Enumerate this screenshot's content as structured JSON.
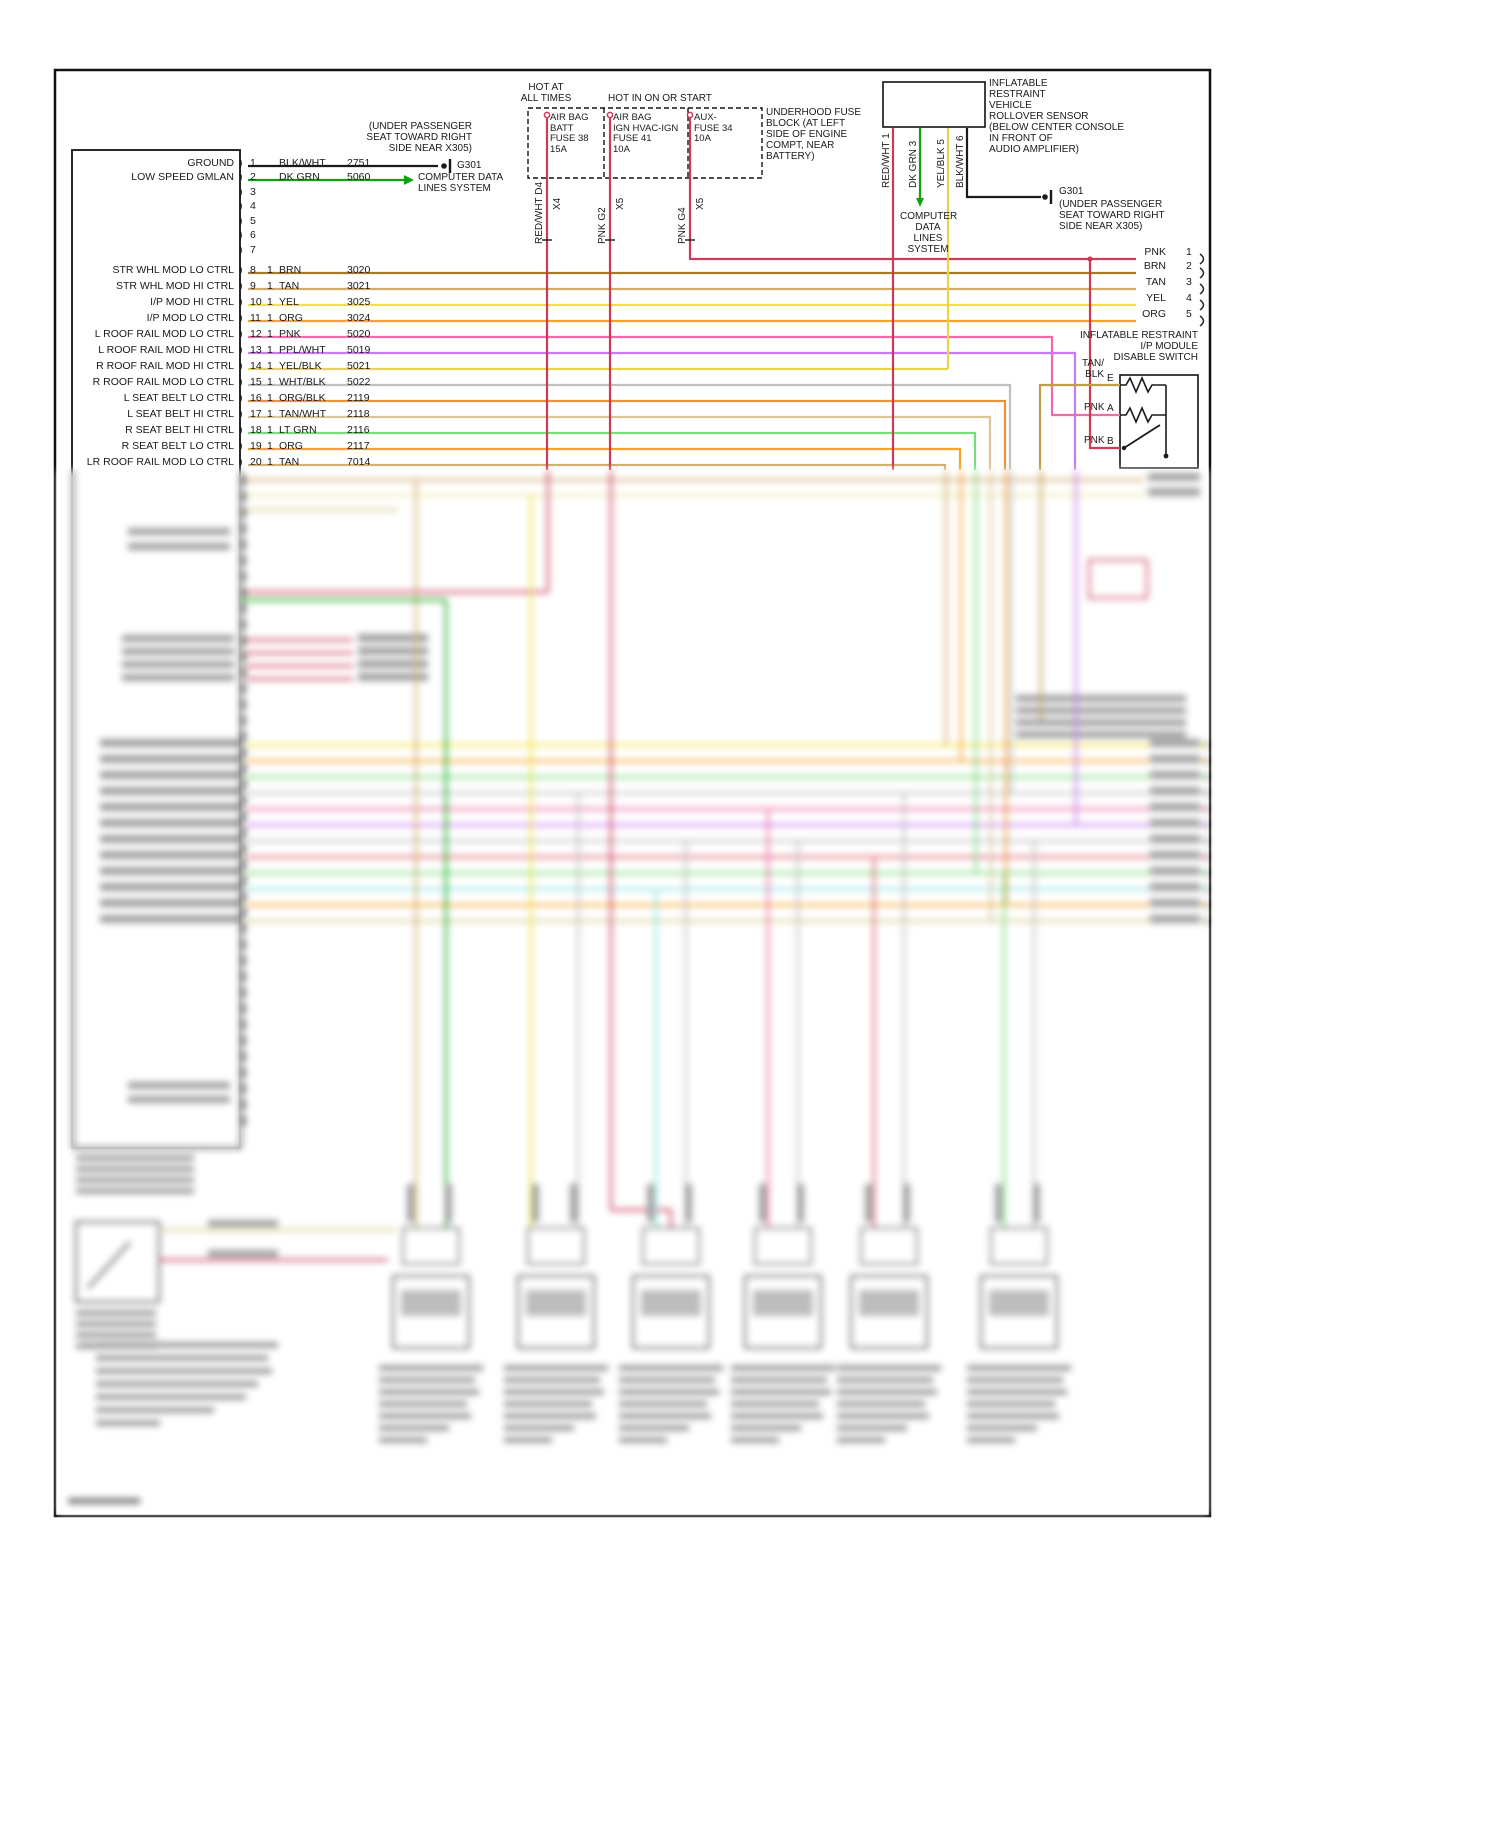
{
  "notes": {
    "under_passenger_left": "(UNDER PASSENGER\nSEAT TOWARD RIGHT\nSIDE NEAR X305)",
    "g301_left": "G301",
    "computer_data_left": "COMPUTER DATA\nLINES SYSTEM",
    "hot_at_all_times": "HOT AT\nALL TIMES",
    "hot_in_on_or_start": "HOT IN ON OR START",
    "underhood_fuse_block": "UNDERHOOD FUSE\nBLOCK (AT LEFT\nSIDE OF ENGINE\nCOMPT, NEAR\nBATTERY)"
  },
  "fuses": [
    {
      "label": "AIR BAG\nBATT\nFUSE 38\n15A",
      "wire": "RED/WHT  D4",
      "connector": "X4"
    },
    {
      "label": "AIR BAG\nIGN HVAC-IGN\nFUSE 41\n10A",
      "wire": "PNK  G2",
      "connector": "X5"
    },
    {
      "label": "AUX-\nFUSE 34\n10A",
      "wire": "PNK  G4",
      "connector": "X5"
    }
  ],
  "rollover_sensor": {
    "label": "INFLATABLE\nRESTRAINT\nVEHICLE\nROLLOVER SENSOR\n(BELOW CENTER CONSOLE\nIN FRONT OF\nAUDIO AMPLIFIER)",
    "pins": [
      "RED/WHT  1",
      "DK GRN  3",
      "YEL/BLK  5",
      "BLK/WHT  6"
    ],
    "computer_data": "COMPUTER\nDATA\nLINES\nSYSTEM",
    "g301": "G301",
    "g301_note": "(UNDER PASSENGER\nSEAT TOWARD RIGHT\nSIDE NEAR X305)"
  },
  "disable_switch": {
    "label": "INFLATABLE RESTRAINT\nI/P MODULE\nDISABLE SWITCH",
    "pin_e_wire": "TAN/\nBLK",
    "pin_e": "E",
    "pin_a_wire": "PNK",
    "pin_a": "A",
    "pin_b_wire": "PNK",
    "pin_b": "B"
  },
  "left_connector": {
    "rows": [
      {
        "pin": "1",
        "label": "GROUND",
        "qty": "",
        "spec": "BLK/WHT",
        "circuit": "2751"
      },
      {
        "pin": "2",
        "label": "LOW SPEED GMLAN",
        "qty": "",
        "spec": "DK GRN",
        "circuit": "5060"
      },
      {
        "pin": "3",
        "label": "",
        "qty": "",
        "spec": "",
        "circuit": ""
      },
      {
        "pin": "4",
        "label": "",
        "qty": "",
        "spec": "",
        "circuit": ""
      },
      {
        "pin": "5",
        "label": "",
        "qty": "",
        "spec": "",
        "circuit": ""
      },
      {
        "pin": "6",
        "label": "",
        "qty": "",
        "spec": "",
        "circuit": ""
      },
      {
        "pin": "7",
        "label": "",
        "qty": "",
        "spec": "",
        "circuit": ""
      },
      {
        "pin": "8",
        "label": "STR WHL MOD LO CTRL",
        "qty": "1",
        "spec": "BRN",
        "circuit": "3020"
      },
      {
        "pin": "9",
        "label": "STR WHL MOD HI CTRL",
        "qty": "1",
        "spec": "TAN",
        "circuit": "3021"
      },
      {
        "pin": "10",
        "label": "I/P MOD HI CTRL",
        "qty": "1",
        "spec": "YEL",
        "circuit": "3025"
      },
      {
        "pin": "11",
        "label": "I/P MOD LO CTRL",
        "qty": "1",
        "spec": "ORG",
        "circuit": "3024"
      },
      {
        "pin": "12",
        "label": "L ROOF RAIL MOD LO CTRL",
        "qty": "1",
        "spec": "PNK",
        "circuit": "5020"
      },
      {
        "pin": "13",
        "label": "L ROOF RAIL MOD HI CTRL",
        "qty": "1",
        "spec": "PPL/WHT",
        "circuit": "5019"
      },
      {
        "pin": "14",
        "label": "R ROOF RAIL MOD HI CTRL",
        "qty": "1",
        "spec": "YEL/BLK",
        "circuit": "5021"
      },
      {
        "pin": "15",
        "label": "R ROOF RAIL MOD LO CTRL",
        "qty": "1",
        "spec": "WHT/BLK",
        "circuit": "5022"
      },
      {
        "pin": "16",
        "label": "L SEAT BELT LO CTRL",
        "qty": "1",
        "spec": "ORG/BLK",
        "circuit": "2119"
      },
      {
        "pin": "17",
        "label": "L SEAT BELT HI CTRL",
        "qty": "1",
        "spec": "TAN/WHT",
        "circuit": "2118"
      },
      {
        "pin": "18",
        "label": "R SEAT BELT HI CTRL",
        "qty": "1",
        "spec": "LT GRN",
        "circuit": "2116"
      },
      {
        "pin": "19",
        "label": "R SEAT BELT LO CTRL",
        "qty": "1",
        "spec": "ORG",
        "circuit": "2117"
      },
      {
        "pin": "20",
        "label": "LR ROOF RAIL MOD LO CTRL",
        "qty": "1",
        "spec": "TAN",
        "circuit": "7014"
      }
    ]
  },
  "right_connector": {
    "rows": [
      {
        "spec": "PNK",
        "pin": "1"
      },
      {
        "spec": "BRN",
        "pin": "2"
      },
      {
        "spec": "TAN",
        "pin": "3"
      },
      {
        "spec": "YEL",
        "pin": "4"
      },
      {
        "spec": "ORG",
        "pin": "5"
      }
    ]
  },
  "wire_colors": {
    "RED/WHT": "#cb3a56",
    "DK GRN": "#0fa30f",
    "BLK/WHT": "#1a1a1a",
    "BRN": "#a87a28",
    "TAN": "#d2ab6a",
    "YEL": "#f2e23c",
    "ORG": "#f5a32b",
    "PNK": "#f06ba8",
    "PPL/WHT": "#c879ef",
    "YEL/BLK": "#e8d44a",
    "WHT/BLK": "#bfbfbf",
    "ORG/BLK": "#e8943f",
    "TAN/WHT": "#dcc49a",
    "LT GRN": "#79dc79",
    "TAN/BLK": "#bf9b4a"
  }
}
